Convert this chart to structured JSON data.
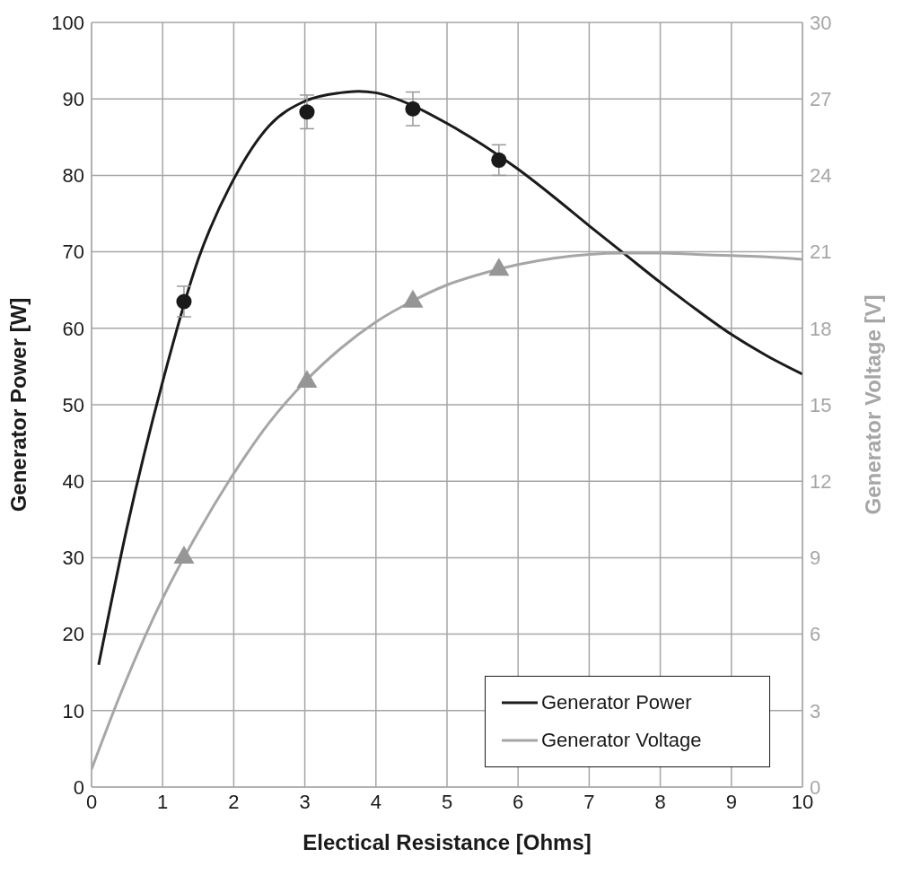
{
  "chart_data": {
    "type": "line",
    "xlabel": "Electical Resistance [Ohms]",
    "ylabel": "Generator Power [W]",
    "y2label": "Generator Voltage [V]",
    "xlim": [
      0,
      10
    ],
    "xticks": [
      0,
      1,
      2,
      3,
      4,
      5,
      6,
      7,
      8,
      9,
      10
    ],
    "ylim": [
      0,
      100
    ],
    "yticks": [
      0,
      10,
      20,
      30,
      40,
      50,
      60,
      70,
      80,
      90,
      100
    ],
    "y2lim": [
      0,
      30
    ],
    "y2ticks": [
      0,
      3,
      6,
      9,
      12,
      15,
      18,
      21,
      24,
      27,
      30
    ],
    "grid": true,
    "legend": "bottom right",
    "line_style": "solid",
    "series": [
      {
        "name": "Generator Power",
        "type": "line",
        "color": "#1a1a1a",
        "marker": "none",
        "x": [
          0.1,
          0.5,
          1,
          1.5,
          2,
          2.5,
          3,
          3.5,
          3.75,
          4,
          4.5,
          5,
          5.5,
          6,
          6.5,
          7,
          7.5,
          8,
          8.5,
          9,
          9.5,
          10
        ],
        "values": [
          16,
          34,
          53,
          69,
          79.5,
          86.5,
          89.7,
          90.8,
          91,
          90.8,
          89.2,
          86.8,
          84,
          80.8,
          77.2,
          73.4,
          69.7,
          66,
          62.5,
          59.2,
          56.4,
          54
        ]
      },
      {
        "name": "Generator Voltage",
        "type": "line",
        "axis": "y2",
        "color": "#a6a6a6",
        "marker": "none",
        "x": [
          0,
          0.4,
          1,
          1.5,
          2,
          2.5,
          3,
          3.5,
          4,
          4.5,
          5,
          5.5,
          6,
          6.5,
          7,
          7.5,
          8,
          8.5,
          9,
          9.5,
          10
        ],
        "values": [
          0.7,
          3.6,
          7.4,
          10,
          12.3,
          14.3,
          15.9,
          17.2,
          18.25,
          19.05,
          19.7,
          20.15,
          20.5,
          20.75,
          20.9,
          20.95,
          20.95,
          20.9,
          20.85,
          20.8,
          20.7
        ]
      },
      {
        "type": "scatter",
        "color": "#1a1a1a",
        "marker": "circle",
        "x": [
          1.3,
          3.03,
          4.52,
          5.73
        ],
        "values": [
          63.5,
          88.3,
          88.7,
          82
        ],
        "errors": [
          2,
          2.2,
          2.2,
          2
        ]
      },
      {
        "type": "scatter",
        "axis": "y2",
        "color": "#969696",
        "marker": "triangle",
        "x": [
          1.3,
          3.03,
          4.52,
          5.73
        ],
        "values": [
          9,
          15.9,
          19.05,
          20.3
        ]
      }
    ]
  }
}
